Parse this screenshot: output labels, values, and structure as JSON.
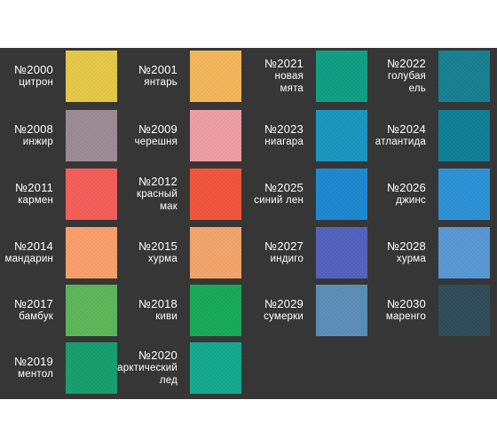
{
  "swatches": [
    {
      "code": "№2000",
      "lines": [
        "цитрон"
      ],
      "color": "#E6C846"
    },
    {
      "code": "№2001",
      "lines": [
        "янтарь"
      ],
      "color": "#F3B65A"
    },
    {
      "code": "№2021",
      "lines": [
        "новая",
        "мята"
      ],
      "color": "#0F9E83"
    },
    {
      "code": "№2022",
      "lines": [
        "голубая",
        "ель"
      ],
      "color": "#167F90"
    },
    {
      "code": "№2008",
      "lines": [
        "инжир"
      ],
      "color": "#9A8A93"
    },
    {
      "code": "№2009",
      "lines": [
        "черешня"
      ],
      "color": "#EF9DA5"
    },
    {
      "code": "№2023",
      "lines": [
        "ниагара"
      ],
      "color": "#1896BE"
    },
    {
      "code": "№2024",
      "lines": [
        "атлантида"
      ],
      "color": "#0E7E96"
    },
    {
      "code": "№2011",
      "lines": [
        "кармен"
      ],
      "color": "#F45D58"
    },
    {
      "code": "№2012",
      "lines": [
        "красный",
        "мак"
      ],
      "color": "#F2533A"
    },
    {
      "code": "№2025",
      "lines": [
        "синий лен"
      ],
      "color": "#1C87D0"
    },
    {
      "code": "№2026",
      "lines": [
        "джинс"
      ],
      "color": "#2B91D6"
    },
    {
      "code": "№2014",
      "lines": [
        "мандарин"
      ],
      "color": "#F99E6A"
    },
    {
      "code": "№2015",
      "lines": [
        "хурма"
      ],
      "color": "#F2A46A"
    },
    {
      "code": "№2027",
      "lines": [
        "индиго"
      ],
      "color": "#5361BE"
    },
    {
      "code": "№2028",
      "lines": [
        "хурма"
      ],
      "color": "#5797D3"
    },
    {
      "code": "№2017",
      "lines": [
        "бамбук"
      ],
      "color": "#5CB558"
    },
    {
      "code": "№2018",
      "lines": [
        "киви"
      ],
      "color": "#16A956"
    },
    {
      "code": "№2029",
      "lines": [
        "сумерки"
      ],
      "color": "#5A8DB8"
    },
    {
      "code": "№2030",
      "lines": [
        "маренго"
      ],
      "color": "#2E4B58"
    },
    {
      "code": "№2019",
      "lines": [
        "ментол"
      ],
      "color": "#169E6F"
    },
    {
      "code": "№2020",
      "lines": [
        "арктический",
        "лед"
      ],
      "color": "#12A98E"
    }
  ]
}
